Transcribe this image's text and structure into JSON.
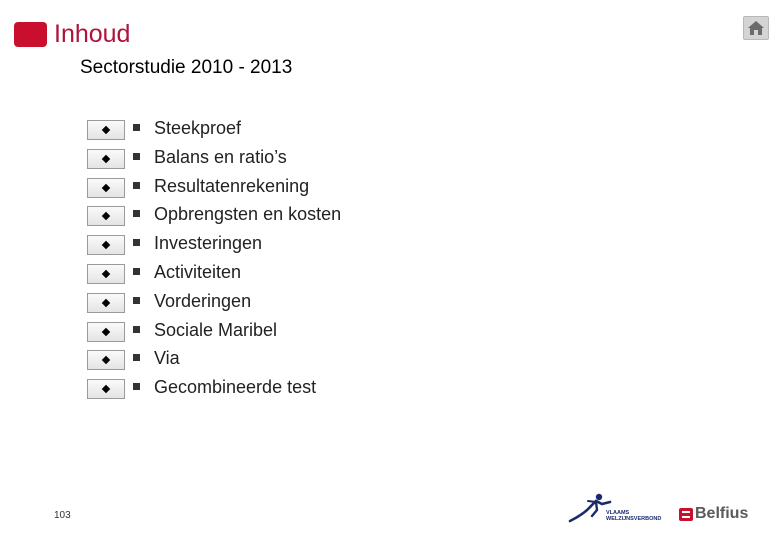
{
  "header": {
    "title": "Inhoud",
    "home_icon": "home-icon"
  },
  "subtitle": "Sectorstudie 2010 - 2013",
  "items": [
    {
      "label": "Steekproef"
    },
    {
      "label": "Balans en ratio’s"
    },
    {
      "label": "Resultatenrekening"
    },
    {
      "label": "Opbrengsten en kosten"
    },
    {
      "label": "Investeringen"
    },
    {
      "label": "Activiteiten"
    },
    {
      "label": "Vorderingen"
    },
    {
      "label": "Sociale Maribel"
    },
    {
      "label": "Via"
    },
    {
      "label": "Gecombineerde test"
    }
  ],
  "footer": {
    "page_number": "103",
    "logo_vv_line1": "VLAAMS",
    "logo_vv_line2": "WELZIJNSVERBOND",
    "logo_belfius": "Belfius"
  },
  "colors": {
    "accent": "#c8102e",
    "title": "#b0123a"
  }
}
